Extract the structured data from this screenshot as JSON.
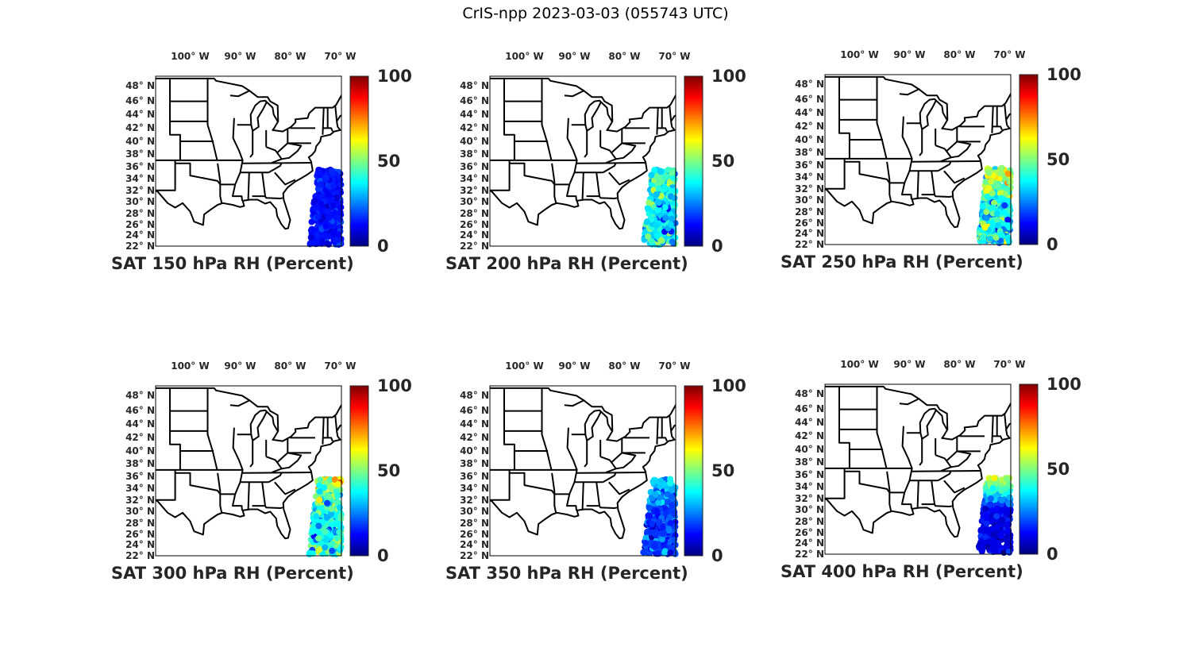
{
  "figure_title": "CrIS-npp 2023-03-03 (055743 UTC)",
  "lon_labels": [
    "100° W",
    "90° W",
    "80° W",
    "70° W"
  ],
  "lon_values": [
    -100,
    -90,
    -80,
    -70
  ],
  "lat_labels": [
    "48° N",
    "46° N",
    "44° N",
    "42° N",
    "40° N",
    "38° N",
    "36° N",
    "34° N",
    "32° N",
    "30° N",
    "28° N",
    "26° N",
    "24° N",
    "22° N"
  ],
  "lat_values": [
    48,
    46,
    44,
    42,
    40,
    38,
    36,
    34,
    32,
    30,
    28,
    26,
    24,
    22
  ],
  "colorbar": {
    "ticks": [
      "100",
      "50",
      "0"
    ],
    "min": 0,
    "max": 100,
    "colormap": "jet"
  },
  "panels": [
    {
      "title": "SAT 150 hPa RH (Percent)",
      "swath_mean_rh": 14,
      "swath_top_rh": 14,
      "spread": 4
    },
    {
      "title": "SAT 200 hPa RH (Percent)",
      "swath_mean_rh": 35,
      "swath_top_rh": 45,
      "spread": 12
    },
    {
      "title": "SAT 250 hPa RH (Percent)",
      "swath_mean_rh": 38,
      "swath_top_rh": 55,
      "spread": 15
    },
    {
      "title": "SAT 300 hPa RH (Percent)",
      "swath_mean_rh": 38,
      "swath_top_rh": 55,
      "spread": 15
    },
    {
      "title": "SAT 350 hPa RH (Percent)",
      "swath_mean_rh": 18,
      "swath_top_rh": 35,
      "spread": 8
    },
    {
      "title": "SAT 400 hPa RH (Percent)",
      "swath_mean_rh": 10,
      "swath_top_rh": 60,
      "spread": 5
    }
  ]
}
